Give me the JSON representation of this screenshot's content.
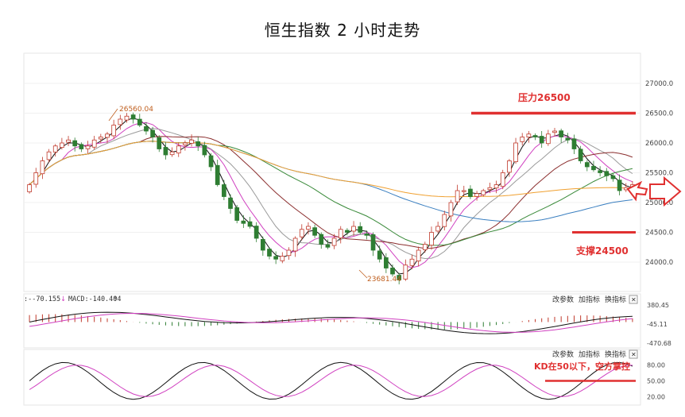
{
  "chart_data": {
    "type": "candlestick",
    "title": "恒生指数 2 小时走势",
    "price_axis": {
      "ylim": [
        23600,
        27400
      ],
      "ticks": [
        "27000.0",
        "26500.0",
        "26000.0",
        "25500.0",
        "25000.0",
        "24500.0",
        "24000.0"
      ]
    },
    "annotations": {
      "high_label": "26560.04",
      "low_label": "23681.44",
      "resistance": "压力26500",
      "support": "支撑24500",
      "resistance_level": 26500,
      "support_level": 24500
    },
    "close_series": [
      25300,
      25500,
      25700,
      25850,
      25950,
      26000,
      26050,
      25950,
      25900,
      25950,
      26050,
      26100,
      26150,
      26300,
      26400,
      26450,
      26400,
      26300,
      26200,
      26100,
      25900,
      25800,
      25850,
      25950,
      26000,
      26050,
      25950,
      25800,
      25600,
      25300,
      25100,
      24900,
      24700,
      24650,
      24600,
      24400,
      24200,
      24100,
      24050,
      24100,
      24200,
      24400,
      24550,
      24600,
      24450,
      24300,
      24250,
      24400,
      24550,
      24500,
      24600,
      24500,
      24450,
      24200,
      24050,
      23900,
      23800,
      23700,
      23950,
      24050,
      24200,
      24300,
      24500,
      24600,
      24800,
      25000,
      25200,
      25200,
      25100,
      25150,
      25200,
      25250,
      25300,
      25500,
      25700,
      26000,
      26100,
      26150,
      26100,
      26000,
      26150,
      26200,
      26100,
      26050,
      25900,
      25700,
      25600,
      25550,
      25500,
      25450,
      25400,
      25200,
      25250,
      25300
    ],
    "macd": {
      "label": "-70.155",
      "label2": "MACD:-140.404",
      "ticks": [
        "380.45",
        "-45.11",
        "-470.68"
      ],
      "ylim": [
        -470.68,
        380.45
      ]
    },
    "kd": {
      "ticks": [
        "80.00",
        "50.00",
        "20.00"
      ],
      "annotation": "KD在50以下，空方掌控"
    },
    "panel_buttons": [
      "改参数",
      "加指标",
      "换指标"
    ],
    "close_glyph": "✕"
  },
  "colors": {
    "up": "#c0392b",
    "down": "#2e7d32",
    "ma_orange": "#f0a030",
    "ma_blue": "#3a7fc0",
    "ma_green": "#3a8a3a",
    "ma_brown": "#8b2e2e",
    "ma_pink": "#d040c0",
    "ma_gray": "#9a9a9a",
    "annotation_red": "#e03030"
  }
}
